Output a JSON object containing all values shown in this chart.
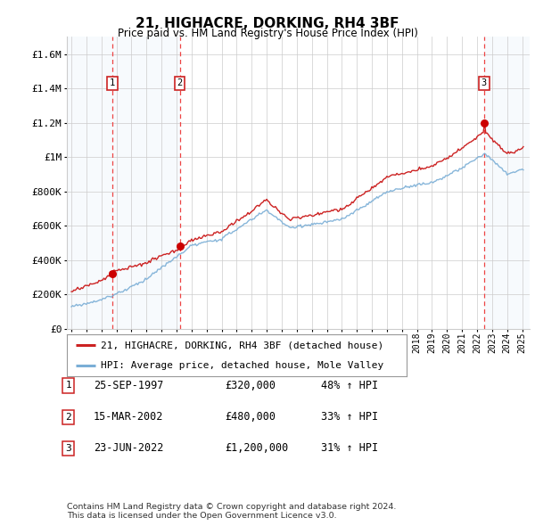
{
  "title": "21, HIGHACRE, DORKING, RH4 3BF",
  "subtitle": "Price paid vs. HM Land Registry's House Price Index (HPI)",
  "footnote": "Contains HM Land Registry data © Crown copyright and database right 2024.\nThis data is licensed under the Open Government Licence v3.0.",
  "legend_line1": "21, HIGHACRE, DORKING, RH4 3BF (detached house)",
  "legend_line2": "HPI: Average price, detached house, Mole Valley",
  "transactions": [
    {
      "num": 1,
      "date": "25-SEP-1997",
      "price": 320000,
      "pct": "48%",
      "year": 1997.73
    },
    {
      "num": 2,
      "date": "15-MAR-2002",
      "price": 480000,
      "pct": "33%",
      "year": 2002.21
    },
    {
      "num": 3,
      "date": "23-JUN-2022",
      "price": 1200000,
      "pct": "31%",
      "year": 2022.47
    }
  ],
  "hpi_color": "#7aaed6",
  "price_color": "#cc2222",
  "dashed_line_color": "#ee4444",
  "marker_color": "#cc0000",
  "shade_color": "#d8e8f8",
  "box_color": "#cc2222",
  "bg_color": "#ffffff",
  "grid_color": "#cccccc",
  "ylim": [
    0,
    1700000
  ],
  "xlim_start": 1994.7,
  "xlim_end": 2025.5,
  "yticks": [
    0,
    200000,
    400000,
    600000,
    800000,
    1000000,
    1200000,
    1400000,
    1600000
  ],
  "ytick_labels": [
    "£0",
    "£200K",
    "£400K",
    "£600K",
    "£800K",
    "£1M",
    "£1.2M",
    "£1.4M",
    "£1.6M"
  ]
}
